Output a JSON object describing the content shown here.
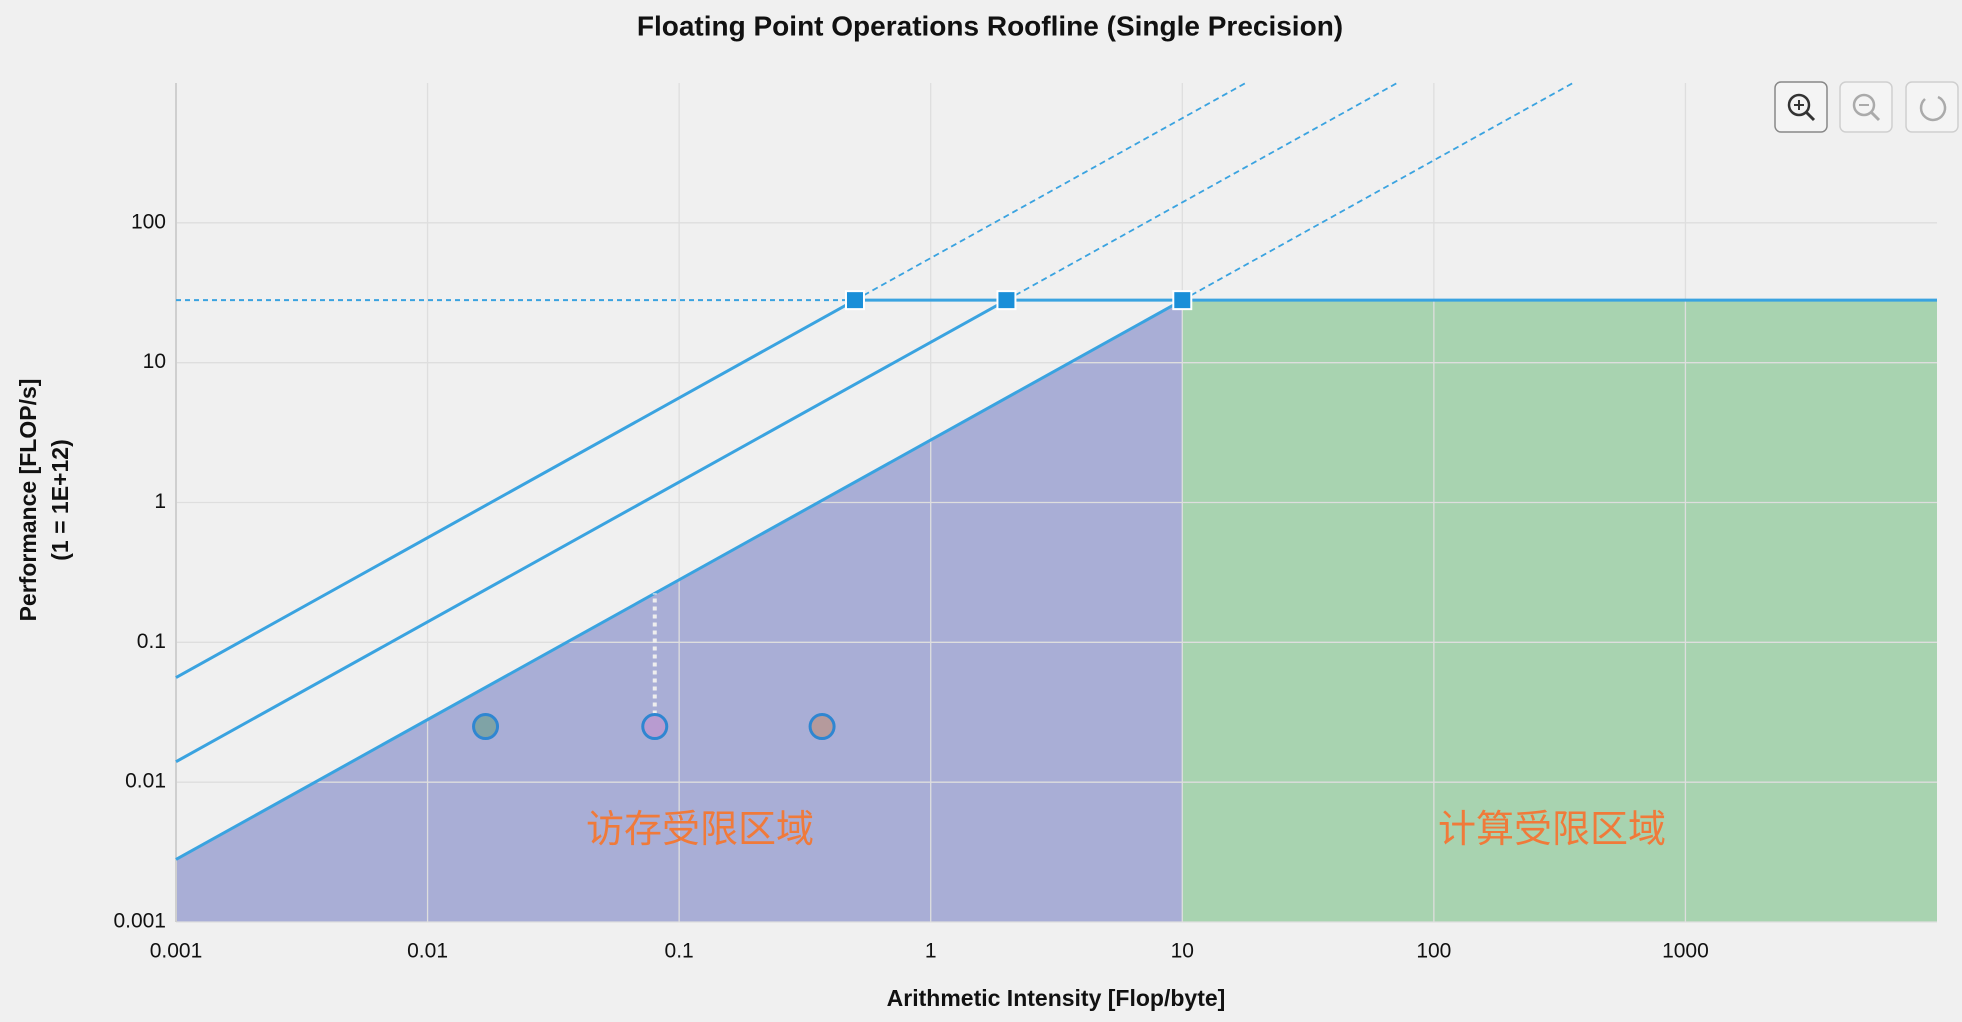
{
  "chart_data": {
    "type": "roofline",
    "title": "Floating Point Operations Roofline (Single Precision)",
    "xlabel": "Arithmetic Intensity [Flop/byte]",
    "ylabel": [
      "Performance [FLOP/s]",
      "(1 = 1E+12)"
    ],
    "log_x": true,
    "log_y": true,
    "grid": true,
    "xlim": [
      0.001,
      10000
    ],
    "ylim": [
      0.001,
      1000
    ],
    "xticks": [
      0.001,
      0.01,
      0.1,
      1,
      10,
      100,
      1000
    ],
    "yticks": [
      0.001,
      0.01,
      0.1,
      1,
      10,
      100
    ],
    "peak": 28,
    "bandwidths": [
      56,
      14,
      2.8
    ],
    "line_color": "#3aa3e0",
    "memory_region": {
      "label": "访存受限区域",
      "color": "#a9aed6"
    },
    "compute_region": {
      "label": "计算受限区域",
      "color": "#a8d3b0"
    },
    "region_label_color": "#f07a3a",
    "points": {
      "x": [
        0.017,
        0.08,
        0.37
      ],
      "y": [
        0.025,
        0.025,
        0.025
      ],
      "colors": [
        "#7fa3a6",
        "#b89bd0",
        "#b59a9c"
      ]
    }
  }
}
